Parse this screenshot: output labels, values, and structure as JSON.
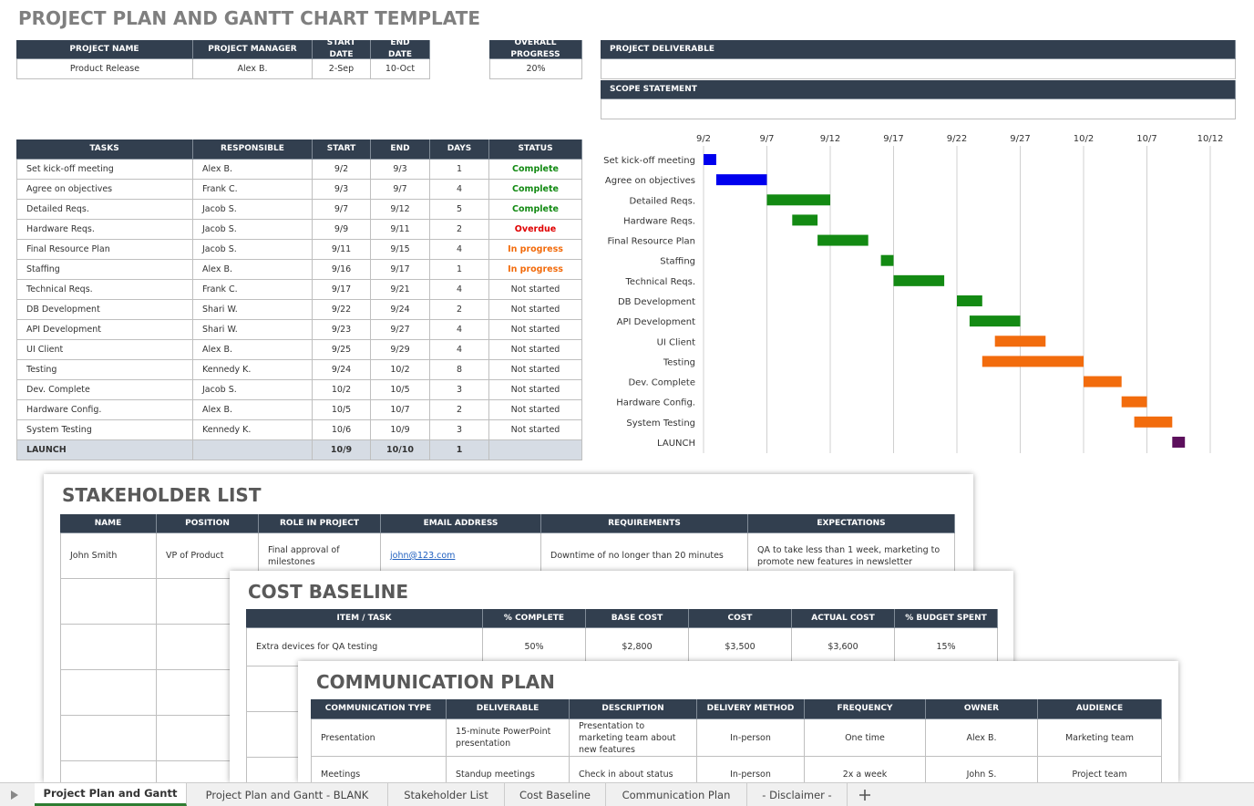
{
  "title": "PROJECT PLAN AND GANTT CHART TEMPLATE",
  "project": {
    "headers": [
      "PROJECT NAME",
      "PROJECT MANAGER",
      "START DATE",
      "END DATE"
    ],
    "row": [
      "Product Release",
      "Alex B.",
      "2-Sep",
      "10-Oct"
    ]
  },
  "progress": {
    "header": "OVERALL PROGRESS",
    "value": "20%"
  },
  "deliverable": {
    "header": "PROJECT DELIVERABLE"
  },
  "scope": {
    "header": "SCOPE STATEMENT"
  },
  "tasks": {
    "headers": [
      "TASKS",
      "RESPONSIBLE",
      "START",
      "END",
      "DAYS",
      "STATUS"
    ],
    "rows": [
      [
        "Set kick-off meeting",
        "Alex B.",
        "9/2",
        "9/3",
        1,
        "Complete"
      ],
      [
        "Agree on objectives",
        "Frank C.",
        "9/3",
        "9/7",
        4,
        "Complete"
      ],
      [
        "Detailed Reqs.",
        "Jacob S.",
        "9/7",
        "9/12",
        5,
        "Complete"
      ],
      [
        "Hardware Reqs.",
        "Jacob S.",
        "9/9",
        "9/11",
        2,
        "Overdue"
      ],
      [
        "Final Resource Plan",
        "Jacob S.",
        "9/11",
        "9/15",
        4,
        "In progress"
      ],
      [
        "Staffing",
        "Alex B.",
        "9/16",
        "9/17",
        1,
        "In progress"
      ],
      [
        "Technical Reqs.",
        "Frank C.",
        "9/17",
        "9/21",
        4,
        "Not started"
      ],
      [
        "DB Development",
        "Shari W.",
        "9/22",
        "9/24",
        2,
        "Not started"
      ],
      [
        "API Development",
        "Shari W.",
        "9/23",
        "9/27",
        4,
        "Not started"
      ],
      [
        "UI Client",
        "Alex B.",
        "9/25",
        "9/29",
        4,
        "Not started"
      ],
      [
        "Testing",
        "Kennedy K.",
        "9/24",
        "10/2",
        8,
        "Not started"
      ],
      [
        "Dev. Complete",
        "Jacob S.",
        "10/2",
        "10/5",
        3,
        "Not started"
      ],
      [
        "Hardware Config.",
        "Alex B.",
        "10/5",
        "10/7",
        2,
        "Not started"
      ],
      [
        "System Testing",
        "Kennedy K.",
        "10/6",
        "10/9",
        3,
        "Not started"
      ],
      [
        "LAUNCH",
        null,
        "10/9",
        "10/10",
        1,
        null
      ]
    ]
  },
  "gantt": {
    "xticks": [
      "9/2",
      "9/7",
      "9/12",
      "9/17",
      "9/22",
      "9/27",
      "10/2",
      "10/7",
      "10/12"
    ],
    "bar_colors": [
      "#0000ee",
      "#0000ee",
      "#138a13",
      "#138a13",
      "#138a13",
      "#138a13",
      "#138a13",
      "#138a13",
      "#138a13",
      "#f26c0d",
      "#f26c0d",
      "#f26c0d",
      "#f26c0d",
      "#f26c0d",
      "#5c0f5c"
    ]
  },
  "stakeholders": {
    "title": "STAKEHOLDER LIST",
    "headers": [
      "NAME",
      "POSITION",
      "ROLE IN PROJECT",
      "EMAIL ADDRESS",
      "REQUIREMENTS",
      "EXPECTATIONS"
    ],
    "rows": [
      [
        "John Smith",
        "VP of Product",
        "Final approval of milestones",
        "john@123.com",
        "Downtime of no longer than 20 minutes",
        "QA to take less than 1 week, marketing to promote new features in newsletter"
      ]
    ]
  },
  "cost": {
    "title": "COST BASELINE",
    "headers": [
      "ITEM / TASK",
      "% COMPLETE",
      "BASE COST",
      "COST",
      "ACTUAL COST",
      "% BUDGET SPENT"
    ],
    "rows": [
      [
        "Extra devices for QA testing",
        "50%",
        "$2,800",
        "$3,500",
        "$3,600",
        "15%"
      ]
    ]
  },
  "communication": {
    "title": "COMMUNICATION PLAN",
    "headers": [
      "COMMUNICATION TYPE",
      "DELIVERABLE",
      "DESCRIPTION",
      "DELIVERY METHOD",
      "FREQUENCY",
      "OWNER",
      "AUDIENCE"
    ],
    "rows": [
      [
        "Presentation",
        "15-minute PowerPoint presentation",
        "Presentation to marketing team about new features",
        "In-person",
        "One time",
        "Alex B.",
        "Marketing team"
      ],
      [
        "Meetings",
        "Standup meetings",
        "Check in about status",
        "In-person",
        "2x a week",
        "John S.",
        "Project team"
      ]
    ]
  },
  "tabs": [
    "Project Plan and Gantt",
    "Project Plan and Gantt - BLANK",
    "Stakeholder List",
    "Cost Baseline",
    "Communication Plan",
    "- Disclaimer -"
  ]
}
